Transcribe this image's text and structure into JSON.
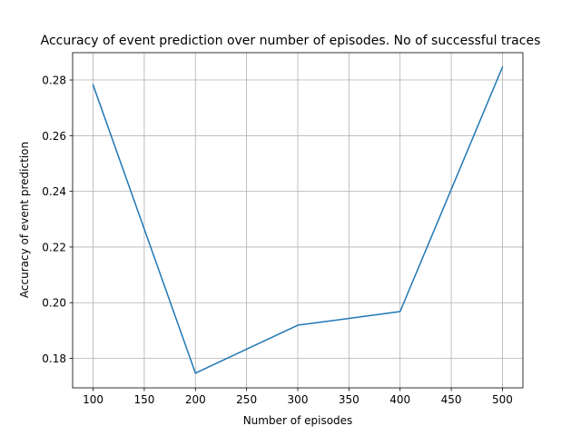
{
  "chart_data": {
    "type": "line",
    "title": "Accuracy of event prediction over number of episodes. No of successful traces",
    "xlabel": "Number of episodes",
    "ylabel": "Accuracy of event prediction",
    "xlim": [
      80,
      520
    ],
    "ylim": [
      0.1694,
      0.2898
    ],
    "xticks": [
      100,
      150,
      200,
      250,
      300,
      350,
      400,
      450,
      500
    ],
    "yticks": [
      0.18,
      0.2,
      0.22,
      0.24,
      0.26,
      0.28
    ],
    "xtick_labels": [
      "100",
      "150",
      "200",
      "250",
      "300",
      "350",
      "400",
      "450",
      "500"
    ],
    "ytick_labels": [
      "0.18",
      "0.20",
      "0.22",
      "0.24",
      "0.26",
      "0.28"
    ],
    "grid": true,
    "series": [
      {
        "color": "#1f77b4",
        "x": [
          100,
          200,
          300,
          400,
          500
        ],
        "y": [
          0.2782,
          0.1747,
          0.1919,
          0.1968,
          0.2846
        ]
      }
    ]
  }
}
